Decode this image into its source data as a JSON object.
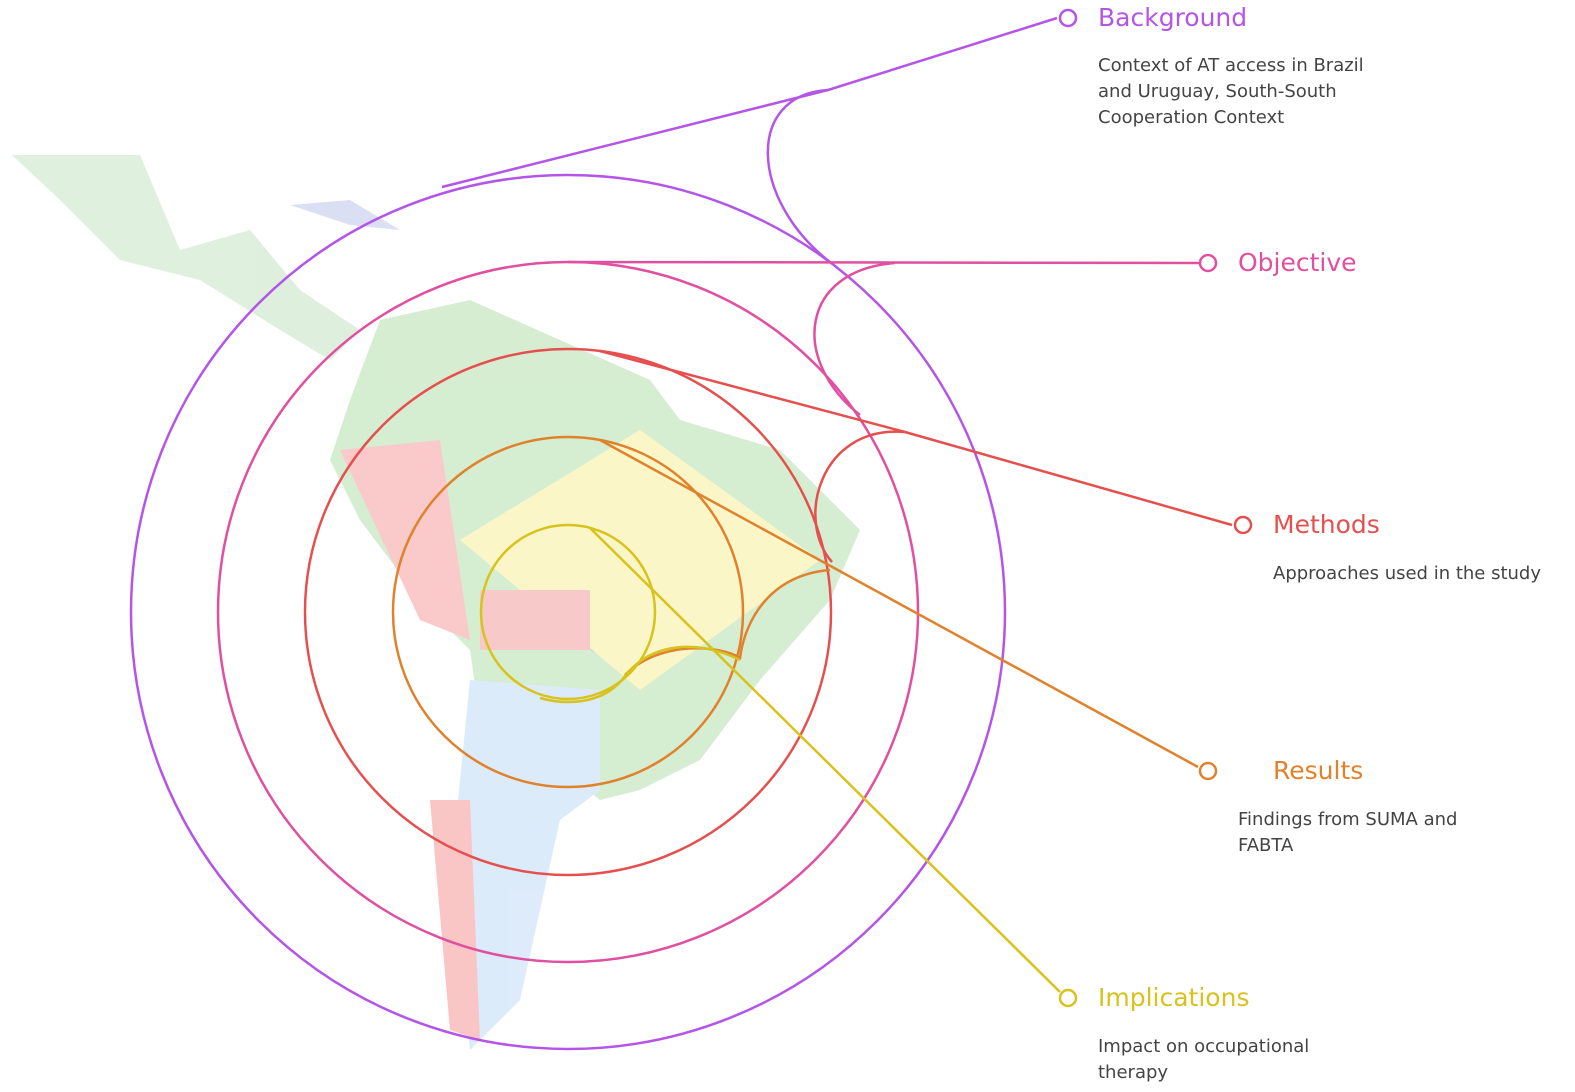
{
  "items": [
    {
      "title": "Background",
      "description": "Context of AT access in Brazil and Uruguay, South-South Cooperation Context",
      "color": "#b455e8"
    },
    {
      "title": "Objective",
      "color": "#e04fa0"
    },
    {
      "title": "Methods",
      "description": "Approaches used in the study",
      "color": "#e5504f"
    },
    {
      "title": "Results",
      "description": "Findings from SUMA and FABTA",
      "color": "#e0822c"
    },
    {
      "title": "Implications",
      "description": "Impact on occupational therapy",
      "color": "#d8c21c"
    }
  ]
}
